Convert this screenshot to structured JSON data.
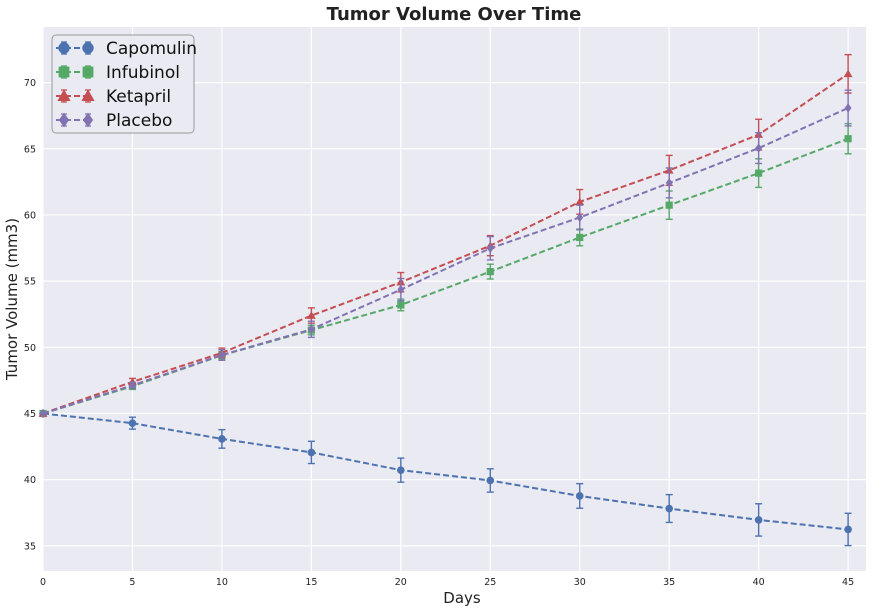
{
  "chart_data": {
    "type": "line",
    "title": "Tumor Volume Over Time",
    "xlabel": "Days",
    "ylabel": "Tumor Volume (mm3)",
    "xlim": [
      0,
      46
    ],
    "ylim": [
      33.1,
      74.2
    ],
    "xticks": [
      0,
      5,
      10,
      15,
      20,
      25,
      30,
      35,
      40,
      45
    ],
    "yticks": [
      35,
      40,
      45,
      50,
      55,
      60,
      65,
      70
    ],
    "grid": true,
    "legend_position": "top-left",
    "x": [
      0,
      5,
      10,
      15,
      20,
      25,
      30,
      35,
      40,
      45
    ],
    "series": [
      {
        "name": "Capomulin",
        "marker": "circle",
        "color": "#4C72B0",
        "values": [
          45.0,
          44.27,
          43.08,
          42.06,
          40.72,
          39.94,
          38.77,
          37.82,
          36.96,
          36.24
        ],
        "errors": [
          0,
          0.45,
          0.7,
          0.84,
          0.91,
          0.88,
          0.93,
          1.05,
          1.22,
          1.22
        ]
      },
      {
        "name": "Infubinol",
        "marker": "square",
        "color": "#55A868",
        "values": [
          45.0,
          47.06,
          49.4,
          51.3,
          53.2,
          55.72,
          58.3,
          60.74,
          63.16,
          65.76
        ],
        "errors": [
          0,
          0.24,
          0.28,
          0.36,
          0.44,
          0.56,
          0.63,
          1.07,
          1.08,
          1.14
        ]
      },
      {
        "name": "Ketapril",
        "marker": "triangle",
        "color": "#C44E52",
        "values": [
          45.0,
          47.39,
          49.58,
          52.4,
          54.92,
          57.68,
          60.99,
          63.37,
          66.07,
          70.66
        ],
        "errors": [
          0,
          0.26,
          0.36,
          0.58,
          0.73,
          0.76,
          0.93,
          1.13,
          1.16,
          1.45
        ]
      },
      {
        "name": "Placebo",
        "marker": "diamond",
        "color": "#8172B2",
        "values": [
          45.0,
          47.13,
          49.42,
          51.36,
          54.36,
          57.48,
          59.81,
          62.42,
          65.05,
          68.08
        ],
        "errors": [
          0,
          0.22,
          0.4,
          0.61,
          0.84,
          0.88,
          0.93,
          1.13,
          1.16,
          1.35
        ]
      }
    ]
  }
}
